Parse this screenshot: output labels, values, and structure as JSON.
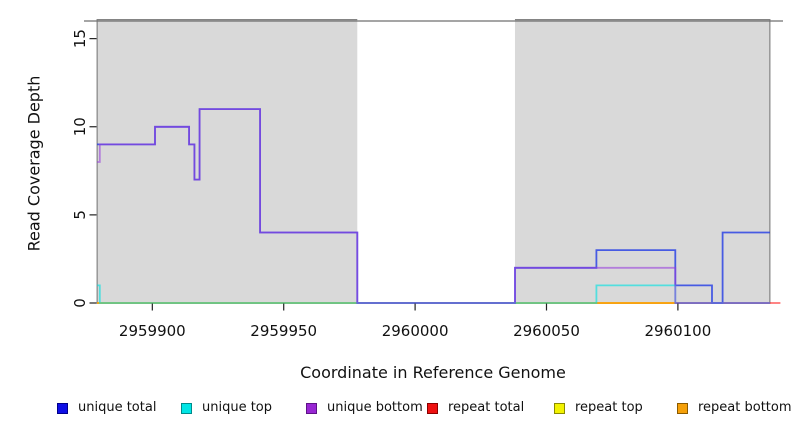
{
  "chart_data": {
    "type": "line",
    "subtype": "step-coverage",
    "title": "",
    "xlabel": "Coordinate in Reference Genome",
    "ylabel": "Read Coverage Depth",
    "xlim": [
      2959874,
      2960140
    ],
    "ylim": [
      0,
      16
    ],
    "x_ticks": [
      2959900,
      2959950,
      2960000,
      2960050,
      2960100
    ],
    "y_ticks": [
      0,
      5,
      10,
      15
    ],
    "grid": false,
    "plot_bg_color": "#FFFFFF",
    "shaded_region_fill": "#D9D9D9",
    "shaded_region_border": "#848484",
    "frame_line_color": "#6F6F6F",
    "shaded_regions": [
      {
        "x_start": 2959879,
        "x_end": 2959978
      },
      {
        "x_start": 2960038,
        "x_end": 2960135
      }
    ],
    "series": [
      {
        "name": "repeat total",
        "plot_color": "rgba(255,0,0,0.55)",
        "steps": [
          [
            2959879,
            0
          ]
        ],
        "x_end": 2960139
      },
      {
        "name": "repeat top",
        "plot_color": "rgba(255,255,0,0.55)",
        "steps": [
          [
            2959879,
            0
          ]
        ],
        "x_end": 2960099
      },
      {
        "name": "repeat bottom",
        "plot_color": "rgba(255,160,0,0.72)",
        "steps": [
          [
            2959879,
            0
          ]
        ],
        "x_end": 2960099
      },
      {
        "name": "unique total",
        "plot_color": "rgba(30,55,230,0.78)",
        "steps": [
          [
            2959879,
            9
          ],
          [
            2959901,
            10
          ],
          [
            2959914,
            9
          ],
          [
            2959916,
            7
          ],
          [
            2959918,
            11
          ],
          [
            2959941,
            4
          ],
          [
            2959978,
            0
          ],
          [
            2960038,
            2
          ],
          [
            2960069,
            3
          ],
          [
            2960099,
            1
          ],
          [
            2960113,
            0
          ],
          [
            2960117,
            4
          ]
        ],
        "x_end": 2960135
      },
      {
        "name": "unique top",
        "plot_color": "rgba(0,225,225,0.62)",
        "steps": [
          [
            2959879,
            1
          ],
          [
            2959880,
            0
          ],
          [
            2960069,
            1
          ],
          [
            2960099,
            0
          ]
        ],
        "x_end": 2960135
      },
      {
        "name": "unique bottom",
        "plot_color": "rgba(150,60,220,0.58)",
        "steps": [
          [
            2959879,
            8
          ],
          [
            2959880,
            9
          ],
          [
            2959901,
            10
          ],
          [
            2959914,
            9
          ],
          [
            2959916,
            7
          ],
          [
            2959918,
            11
          ],
          [
            2959941,
            4
          ],
          [
            2959978,
            0
          ],
          [
            2960038,
            2
          ],
          [
            2960099,
            0
          ]
        ],
        "x_end": 2960135
      }
    ],
    "legend": [
      {
        "label": "unique total",
        "fill": "#0F0FE6",
        "border": "#00008B"
      },
      {
        "label": "unique top",
        "fill": "#00E5E5",
        "border": "#008B8B"
      },
      {
        "label": "unique bottom",
        "fill": "#9826D3",
        "border": "#5E1287"
      },
      {
        "label": "repeat total",
        "fill": "#EE1111",
        "border": "#8B0000"
      },
      {
        "label": "repeat top",
        "fill": "#F2F200",
        "border": "#8B8B00"
      },
      {
        "label": "repeat bottom",
        "fill": "#F5A009",
        "border": "#8B5A00"
      }
    ],
    "legend_position": "bottom"
  }
}
